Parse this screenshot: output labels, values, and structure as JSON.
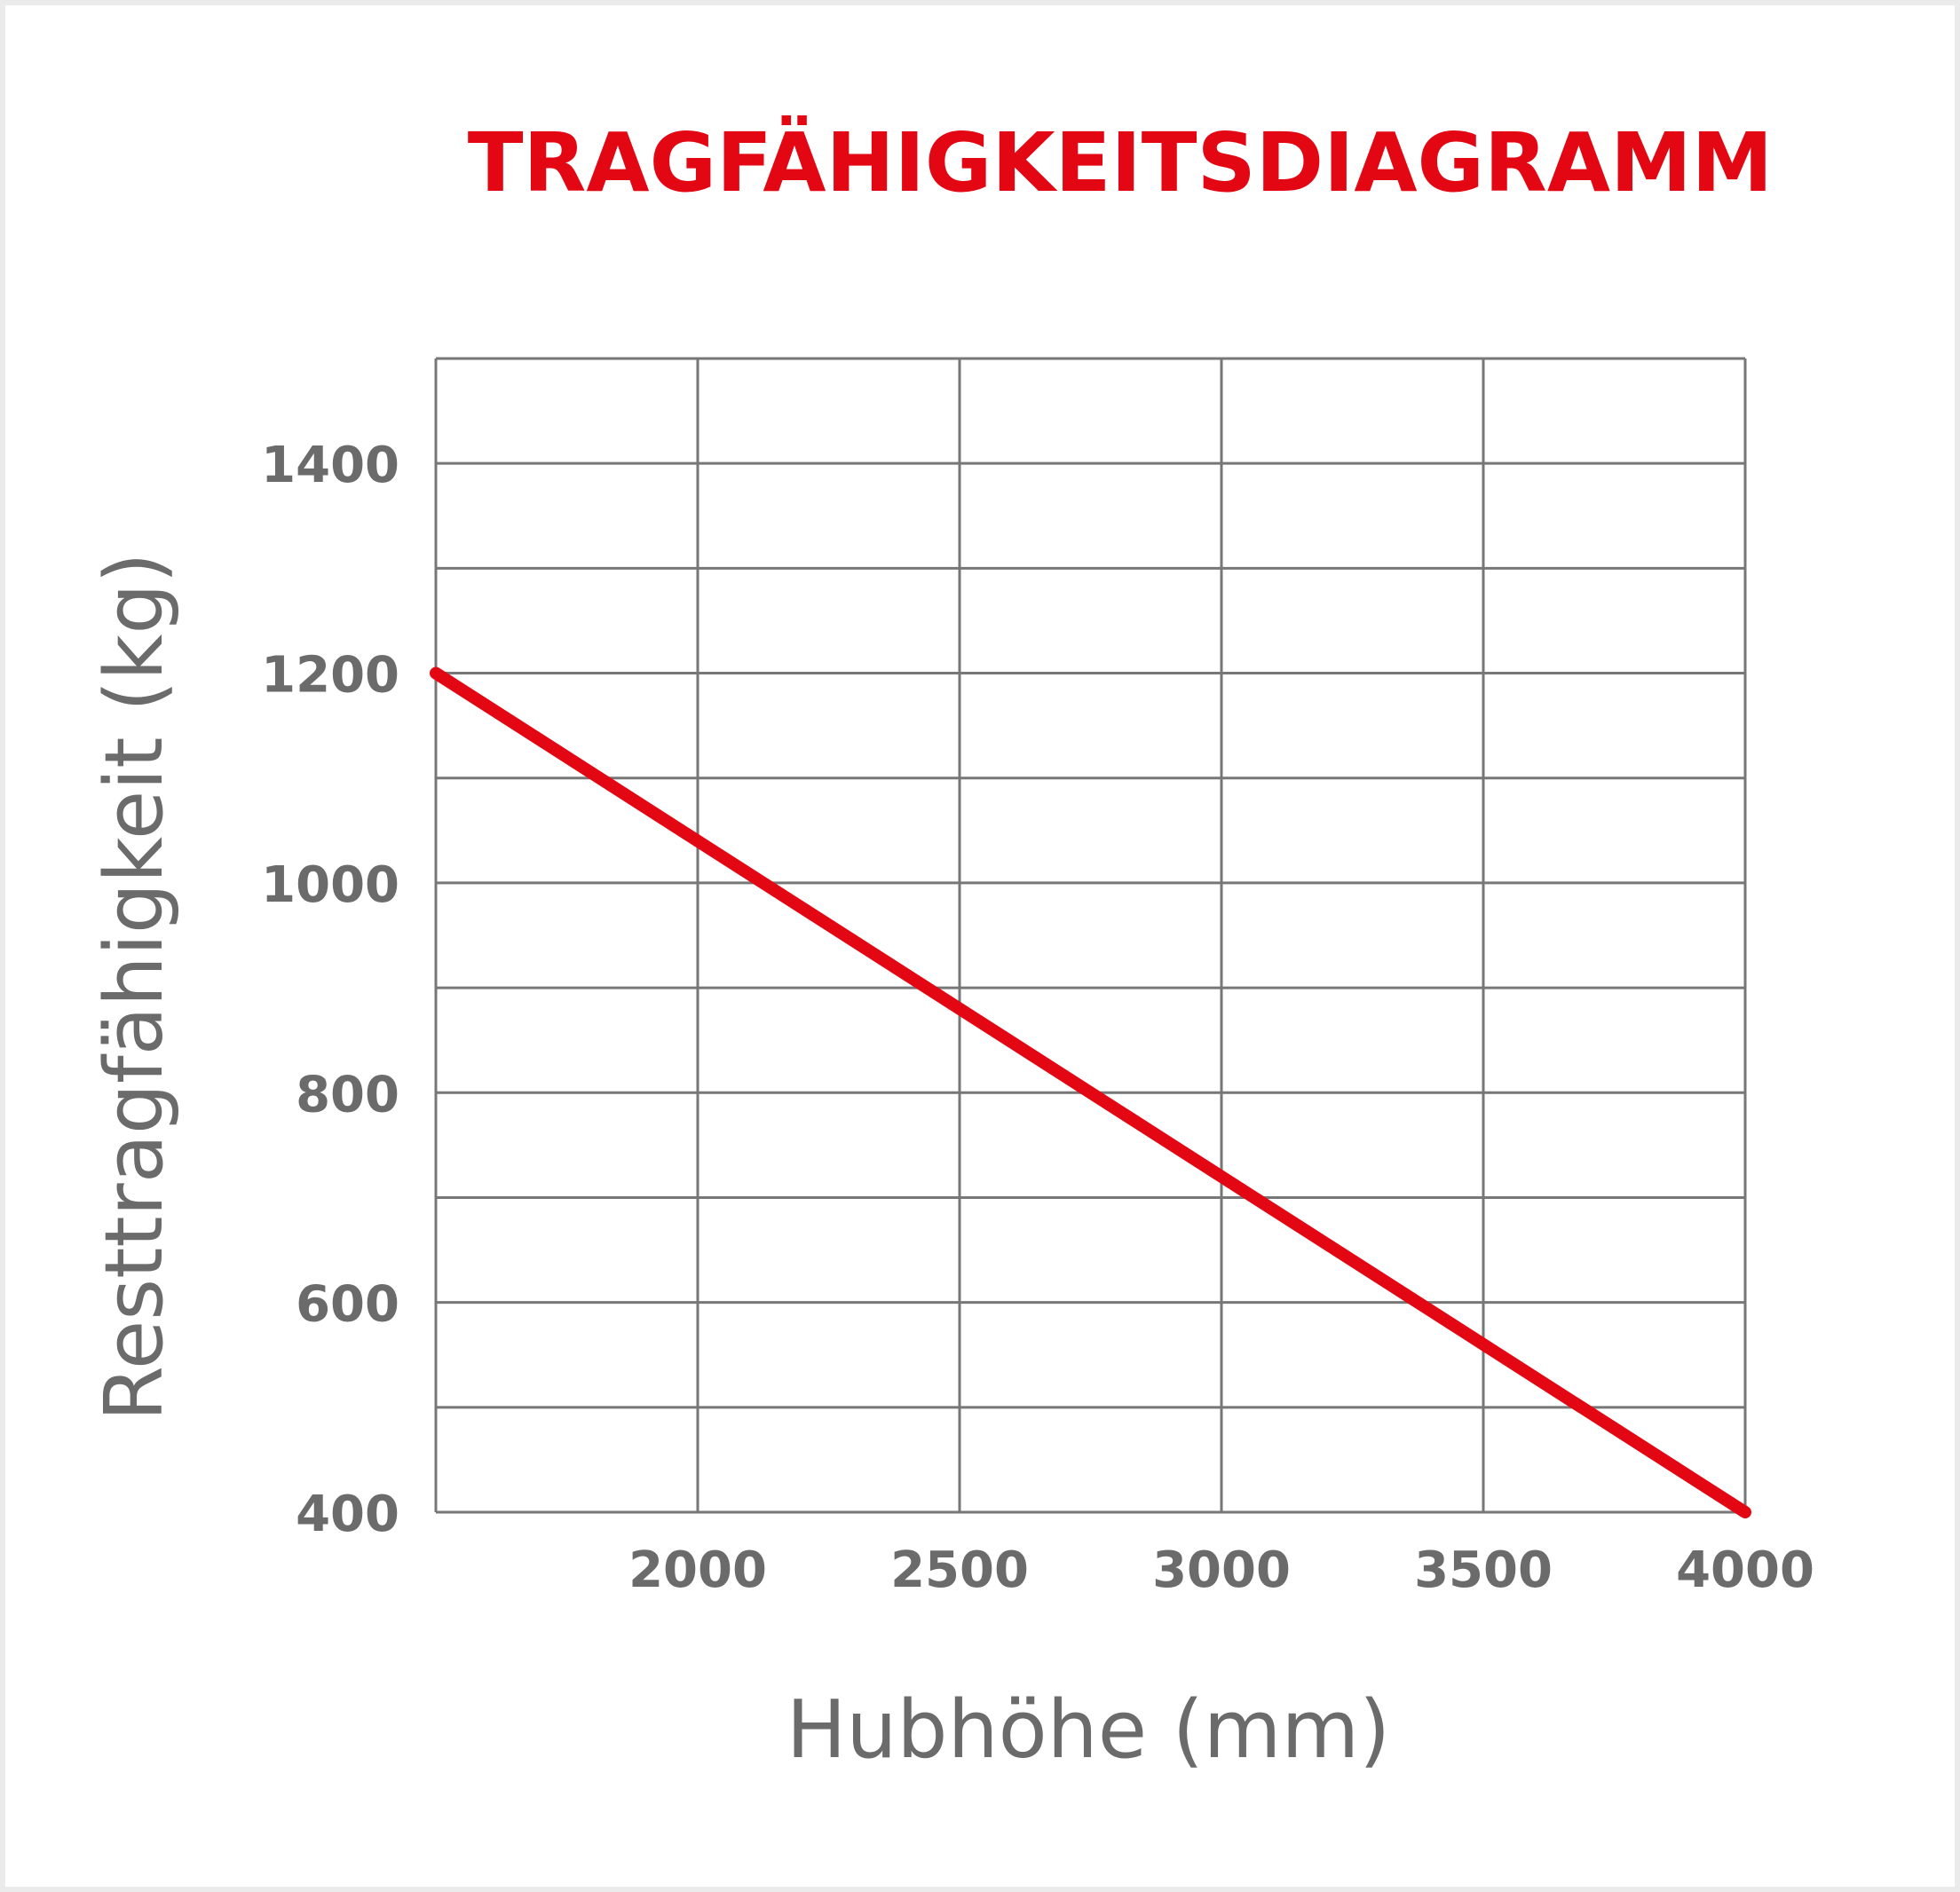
{
  "chart_data": {
    "type": "line",
    "title": "TRAGFÄHIGKEITSDIAGRAMM",
    "xlabel": "Hubhöhe (mm)",
    "ylabel": "Resttragfähigkeit (kg)",
    "xlim": [
      1500,
      4000
    ],
    "ylim": [
      400,
      1500
    ],
    "x_ticks": [
      2000,
      2500,
      3000,
      3500,
      4000
    ],
    "y_ticks": [
      400,
      600,
      800,
      1000,
      1200,
      1400
    ],
    "x_grid_step": 500,
    "y_grid_step": 100,
    "grid": true,
    "series": [
      {
        "x": [
          1500,
          4000
        ],
        "y": [
          1200,
          400
        ]
      }
    ],
    "colors": {
      "title": "#e30613",
      "line": "#e30613",
      "grid": "#777777",
      "text": "#6b6b6b"
    }
  }
}
